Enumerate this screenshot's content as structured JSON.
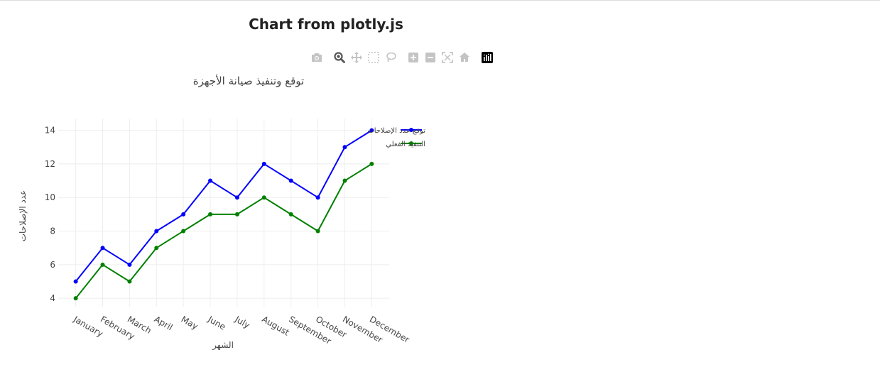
{
  "page": {
    "heading": "Chart from plotly.js"
  },
  "modebar": {
    "buttons": [
      {
        "icon": "camera-icon"
      },
      {
        "icon": "zoom-icon"
      },
      {
        "icon": "pan-icon"
      },
      {
        "icon": "box-select-icon"
      },
      {
        "icon": "lasso-icon"
      },
      {
        "icon": "zoom-in-icon"
      },
      {
        "icon": "zoom-out-icon"
      },
      {
        "icon": "autoscale-icon"
      },
      {
        "icon": "reset-axes-icon"
      },
      {
        "icon": "plotly-logo-icon"
      }
    ],
    "icon_color": "#c4c4c4",
    "active_color": "#555555",
    "logo_color": "#000000"
  },
  "chart_data": {
    "type": "line",
    "title": "توقع وتنفيذ صيانة الأجهزة",
    "xlabel": "الشهر",
    "ylabel": "عدد الإصلاحات",
    "categories": [
      "January",
      "February",
      "March",
      "April",
      "May",
      "June",
      "July",
      "August",
      "September",
      "October",
      "November",
      "December"
    ],
    "series": [
      {
        "name": "توقع عدد الإصلاحات",
        "color": "#0000ff",
        "values": [
          5,
          7,
          6,
          8,
          9,
          11,
          10,
          12,
          11,
          10,
          13,
          14
        ]
      },
      {
        "name": "التنفيذ الفعلي",
        "color": "#008000",
        "values": [
          4,
          6,
          5,
          7,
          8,
          9,
          9,
          10,
          9,
          8,
          11,
          12
        ]
      }
    ],
    "yticks": [
      4,
      6,
      8,
      10,
      12,
      14
    ],
    "ylim": [
      3.5,
      14.7
    ],
    "grid": true,
    "legend_position": "top-right",
    "markers": true
  }
}
